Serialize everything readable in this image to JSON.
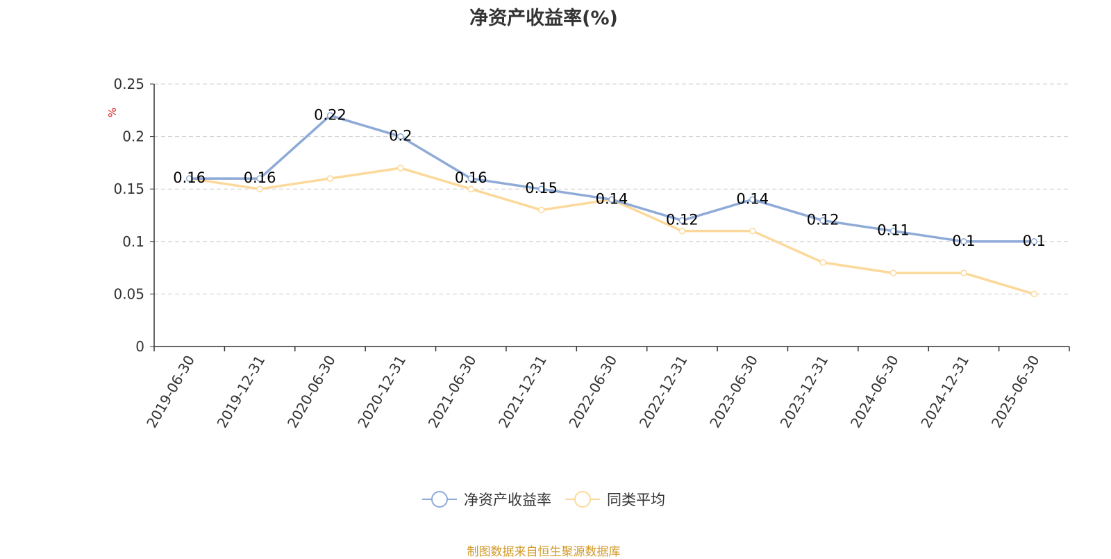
{
  "chart_data": {
    "type": "line",
    "title": "净资产收益率(%)",
    "ylabel": "%",
    "ylim": [
      0,
      0.25
    ],
    "yticks": [
      "0",
      "0.05",
      "0.1",
      "0.15",
      "0.2",
      "0.25"
    ],
    "grid": true,
    "legend_position": "bottom-center",
    "categories": [
      "2019-06-30",
      "2019-12-31",
      "2020-06-30",
      "2020-12-31",
      "2021-06-30",
      "2021-12-31",
      "2022-06-30",
      "2022-12-31",
      "2023-06-30",
      "2023-12-31",
      "2024-06-30",
      "2024-12-31",
      "2025-06-30"
    ],
    "series": [
      {
        "name": "净资产收益率",
        "color": "#8eaad7",
        "values": [
          0.16,
          0.16,
          0.22,
          0.2,
          0.16,
          0.15,
          0.14,
          0.12,
          0.14,
          0.12,
          0.11,
          0.1,
          0.1
        ],
        "labels": [
          "0.16",
          "0.16",
          "0.22",
          "0.2",
          "0.16",
          "0.15",
          "0.14",
          "0.12",
          "0.14",
          "0.12",
          "0.11",
          "0.1",
          "0.1"
        ]
      },
      {
        "name": "同类平均",
        "color": "#fcd99a",
        "values": [
          0.16,
          0.15,
          0.16,
          0.17,
          0.15,
          0.13,
          0.14,
          0.11,
          0.11,
          0.08,
          0.07,
          0.07,
          0.05
        ]
      }
    ]
  },
  "source_text": "制图数据来自恒生聚源数据库"
}
